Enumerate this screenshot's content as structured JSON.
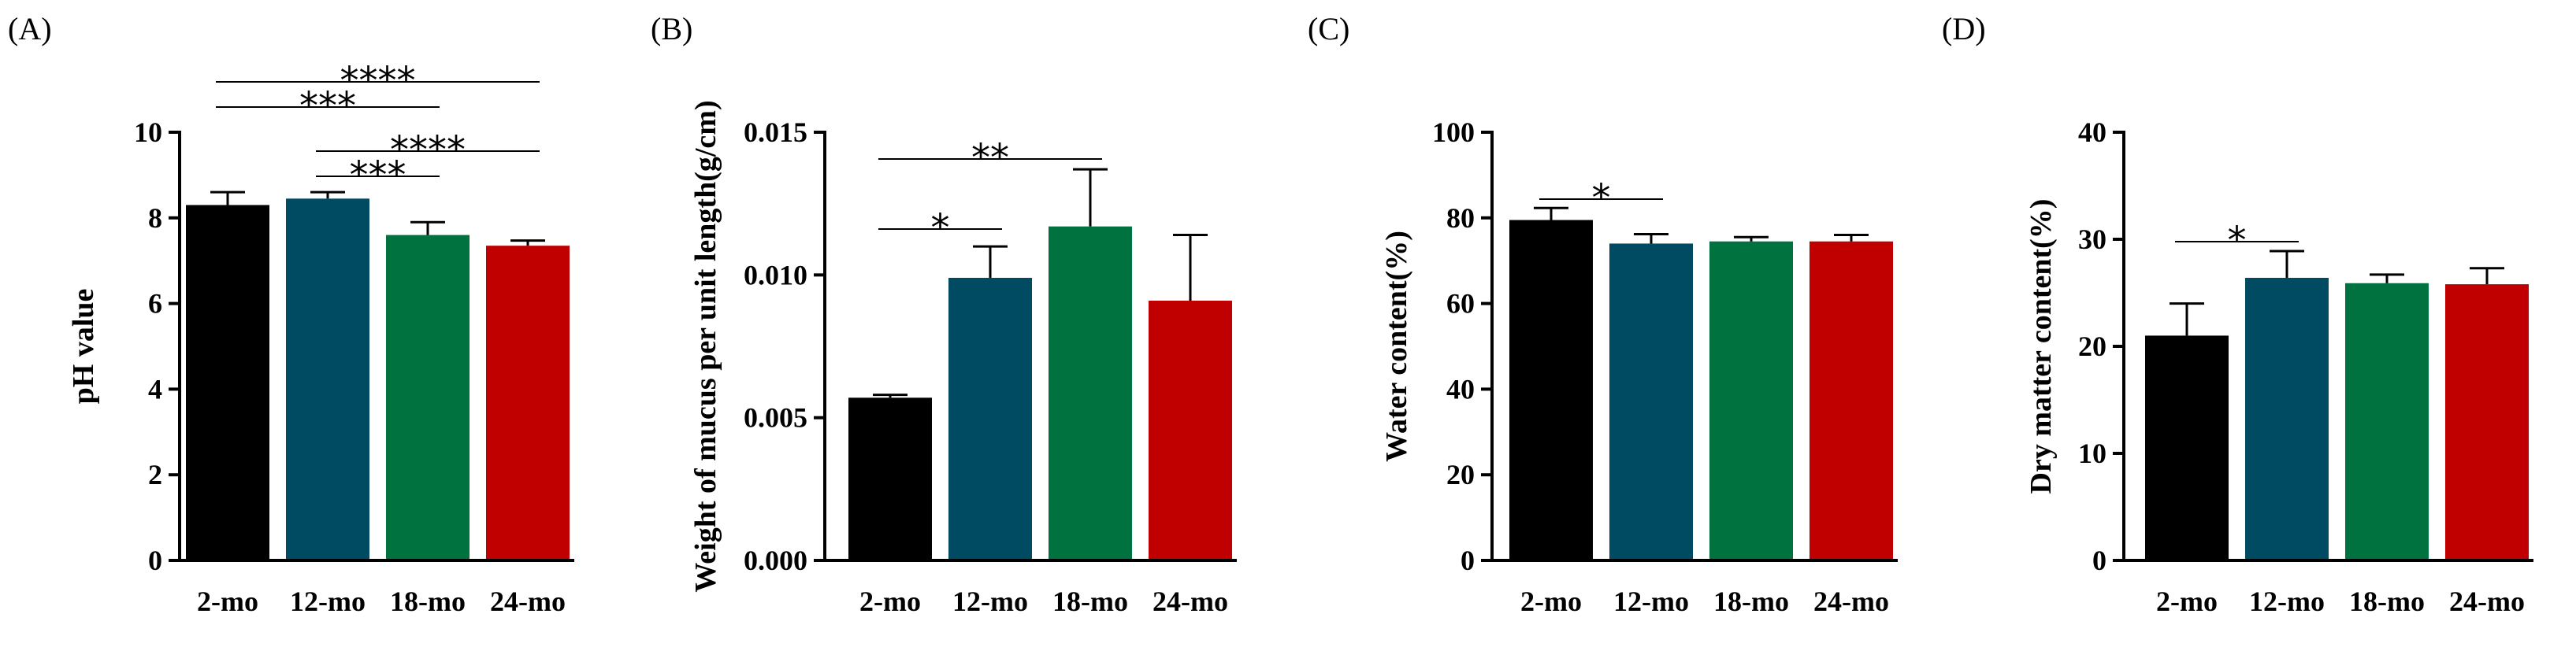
{
  "colors": {
    "2-mo": "#000000",
    "12-mo": "#004A62",
    "18-mo": "#007240",
    "24-mo": "#C00000"
  },
  "chart_data": [
    {
      "panel": "(A)",
      "type": "bar",
      "categories": [
        "2-mo",
        "12-mo",
        "18-mo",
        "24-mo"
      ],
      "values": [
        8.3,
        8.45,
        7.6,
        7.35
      ],
      "errors": [
        0.3,
        0.15,
        0.3,
        0.12
      ],
      "ylabel": "pH value",
      "ylim": [
        0,
        10
      ],
      "yticks": [
        "0",
        "2",
        "4",
        "6",
        "8",
        "10"
      ],
      "significance": [
        {
          "from": 0,
          "to": 3,
          "label": "****"
        },
        {
          "from": 0,
          "to": 2,
          "label": "***"
        },
        {
          "from": 1,
          "to": 3,
          "label": "****"
        },
        {
          "from": 1,
          "to": 2,
          "label": "***"
        }
      ]
    },
    {
      "panel": "(B)",
      "type": "bar",
      "categories": [
        "2-mo",
        "12-mo",
        "18-mo",
        "24-mo"
      ],
      "values": [
        0.0057,
        0.0099,
        0.0117,
        0.0091
      ],
      "errors": [
        0.0001,
        0.0011,
        0.002,
        0.0023
      ],
      "ylabel": "Weight of mucus per unit length(g/cm)",
      "ylim": [
        0,
        0.015
      ],
      "yticks": [
        "0.000",
        "0.005",
        "0.010",
        "0.015"
      ],
      "significance": [
        {
          "from": 0,
          "to": 2,
          "label": "**"
        },
        {
          "from": 0,
          "to": 1,
          "label": "*"
        }
      ]
    },
    {
      "panel": "(C)",
      "type": "bar",
      "categories": [
        "2-mo",
        "12-mo",
        "18-mo",
        "24-mo"
      ],
      "values": [
        79.5,
        74,
        74.5,
        74.5
      ],
      "errors": [
        2.8,
        2.2,
        1,
        1.5
      ],
      "ylabel": "Water content(%)",
      "ylim": [
        0,
        100
      ],
      "yticks": [
        "0",
        "20",
        "40",
        "60",
        "80",
        "100"
      ],
      "significance": [
        {
          "from": 0,
          "to": 1,
          "label": "*"
        }
      ]
    },
    {
      "panel": "(D)",
      "type": "bar",
      "categories": [
        "2-mo",
        "12-mo",
        "18-mo",
        "24-mo"
      ],
      "values": [
        21,
        26.4,
        25.9,
        25.8
      ],
      "errors": [
        3,
        2.5,
        0.8,
        1.5
      ],
      "ylabel": "Dry matter content(%)",
      "ylim": [
        0,
        40
      ],
      "yticks": [
        "0",
        "10",
        "20",
        "30",
        "40"
      ],
      "significance": [
        {
          "from": 0,
          "to": 1,
          "label": "*"
        }
      ]
    }
  ]
}
